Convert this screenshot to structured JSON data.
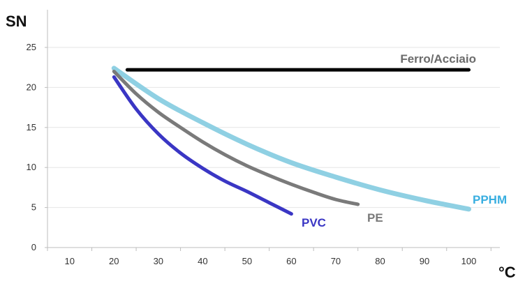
{
  "chart_data": {
    "type": "line",
    "title": "",
    "ylabel": "SN",
    "xlabel": "°C",
    "xlim": [
      5,
      107
    ],
    "ylim": [
      0,
      25
    ],
    "xticks": [
      10,
      20,
      30,
      40,
      50,
      60,
      70,
      80,
      90,
      100
    ],
    "yticks": [
      0,
      5,
      10,
      15,
      20,
      25
    ],
    "grid": "horizontal",
    "legend": "inline labels",
    "series": [
      {
        "name": "Ferro/Acciaio",
        "color": "#000000",
        "x": [
          23,
          100
        ],
        "y": [
          22.2,
          22.2
        ]
      },
      {
        "name": "PVC",
        "color": "#3a36c4",
        "x": [
          20,
          25,
          30,
          35,
          40,
          45,
          50,
          55,
          60
        ],
        "y": [
          21.3,
          17.3,
          14.2,
          11.8,
          9.9,
          8.3,
          7.0,
          5.6,
          4.2
        ]
      },
      {
        "name": "PE",
        "color": "#7a7a7a",
        "x": [
          20,
          25,
          30,
          35,
          40,
          45,
          50,
          55,
          60,
          65,
          70,
          75
        ],
        "y": [
          22.0,
          19.2,
          16.9,
          15.0,
          13.2,
          11.6,
          10.2,
          9.0,
          7.9,
          6.9,
          6.0,
          5.4
        ]
      },
      {
        "name": "PPHM",
        "color": "#8fd0e3",
        "x": [
          20,
          30,
          40,
          50,
          60,
          70,
          80,
          90,
          100
        ],
        "y": [
          22.4,
          18.6,
          15.6,
          12.9,
          10.6,
          8.8,
          7.2,
          5.9,
          4.8
        ]
      }
    ]
  }
}
